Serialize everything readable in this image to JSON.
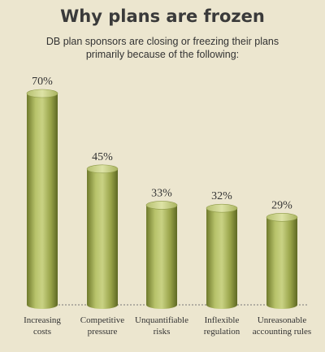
{
  "chart_data": {
    "type": "bar",
    "title": "Why plans are frozen",
    "subtitle": "DB plan sponsors are closing or freezing their plans primarily because of the following:",
    "categories": [
      [
        "Increasing",
        "costs"
      ],
      [
        "Competitive",
        "pressure"
      ],
      [
        "Unquantifiable",
        "risks"
      ],
      [
        "Inflexible",
        "regulation"
      ],
      [
        "Unreasonable",
        "accounting rules"
      ]
    ],
    "values": [
      70,
      45,
      33,
      32,
      29
    ],
    "data_labels": [
      "70%",
      "45%",
      "33%",
      "32%",
      "29%"
    ],
    "ylim": [
      0,
      70
    ],
    "grid": false,
    "colors": {
      "bar": "#a9b45a",
      "background": "#ece6cf",
      "text": "#333333"
    }
  }
}
